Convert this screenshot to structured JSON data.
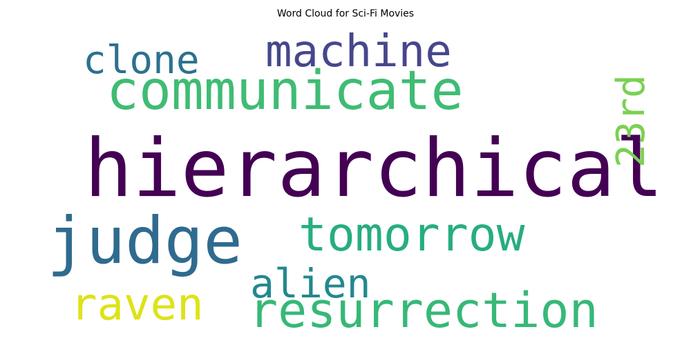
{
  "title": "Word Cloud for Sci-Fi Movies",
  "words": [
    {
      "text": "hierarchical",
      "color": "#440154"
    },
    {
      "text": "communicate",
      "color": "#3fbc73"
    },
    {
      "text": "machine",
      "color": "#46478b"
    },
    {
      "text": "clone",
      "color": "#2c718e"
    },
    {
      "text": "judge",
      "color": "#2f6b8e"
    },
    {
      "text": "tomorrow",
      "color": "#27ad81"
    },
    {
      "text": "alien",
      "color": "#23888e"
    },
    {
      "text": "raven",
      "color": "#dde318"
    },
    {
      "text": "resurrection",
      "color": "#37b878"
    },
    {
      "text": "23rd",
      "color": "#7ad151"
    }
  ]
}
